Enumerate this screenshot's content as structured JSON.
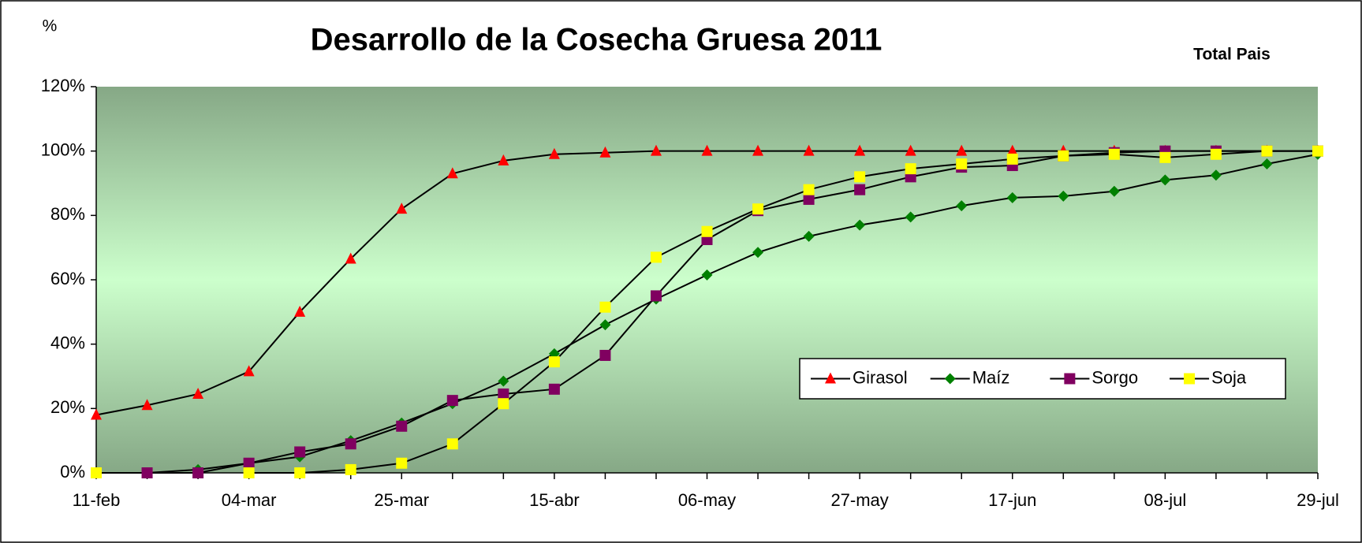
{
  "chart_data": {
    "type": "line",
    "title": "Desarrollo de la Cosecha Gruesa 2011",
    "subtitle": "Total Pais",
    "ylabel": "%",
    "categories": [
      "11-feb",
      null,
      null,
      "04-mar",
      null,
      null,
      "25-mar",
      null,
      null,
      "15-abr",
      null,
      null,
      "06-may",
      null,
      null,
      "27-may",
      null,
      null,
      "17-jun",
      null,
      null,
      "08-jul",
      null,
      null,
      "29-jul"
    ],
    "series": [
      {
        "name": "Girasol",
        "color": "#ff0000",
        "marker": "triangle",
        "values": [
          18,
          21,
          24.5,
          31.5,
          50,
          66.5,
          82,
          93,
          97,
          99,
          99.5,
          100,
          100,
          100,
          100,
          100,
          100,
          100,
          100,
          100,
          100,
          100,
          100,
          100,
          100
        ]
      },
      {
        "name": "Maíz",
        "color": "#008000",
        "marker": "diamond",
        "values": [
          0,
          0,
          1,
          3,
          5,
          10,
          15.5,
          21.5,
          28.5,
          37,
          46,
          54,
          61.5,
          68.5,
          73.5,
          77,
          79.5,
          83,
          85.5,
          86,
          87.5,
          91,
          92.5,
          96,
          99
        ]
      },
      {
        "name": "Sorgo",
        "color": "#800060",
        "marker": "square",
        "values": [
          0,
          0,
          0,
          3,
          6.5,
          9,
          14.5,
          22.5,
          24.5,
          26,
          36.5,
          55,
          72.5,
          81.5,
          85,
          88,
          92,
          95,
          95.5,
          98.5,
          99.5,
          100,
          100,
          100,
          100
        ]
      },
      {
        "name": "Soja",
        "color": "#ffff00",
        "marker": "square",
        "values": [
          0,
          null,
          null,
          0,
          0,
          1,
          3,
          9,
          21.5,
          34.5,
          51.5,
          67,
          75,
          82,
          88,
          92,
          94.5,
          96,
          97.5,
          98.5,
          99,
          98,
          99,
          100,
          100
        ]
      }
    ],
    "ylim": [
      0,
      120
    ],
    "yticks": [
      {
        "value": 0,
        "label": "0%"
      },
      {
        "value": 20,
        "label": "20%"
      },
      {
        "value": 40,
        "label": "40%"
      },
      {
        "value": 60,
        "label": "60%"
      },
      {
        "value": 80,
        "label": "80%"
      },
      {
        "value": 100,
        "label": "100%"
      },
      {
        "value": 120,
        "label": "120%"
      }
    ],
    "line_color": "#000000",
    "legend": "lower right",
    "grid": false
  }
}
